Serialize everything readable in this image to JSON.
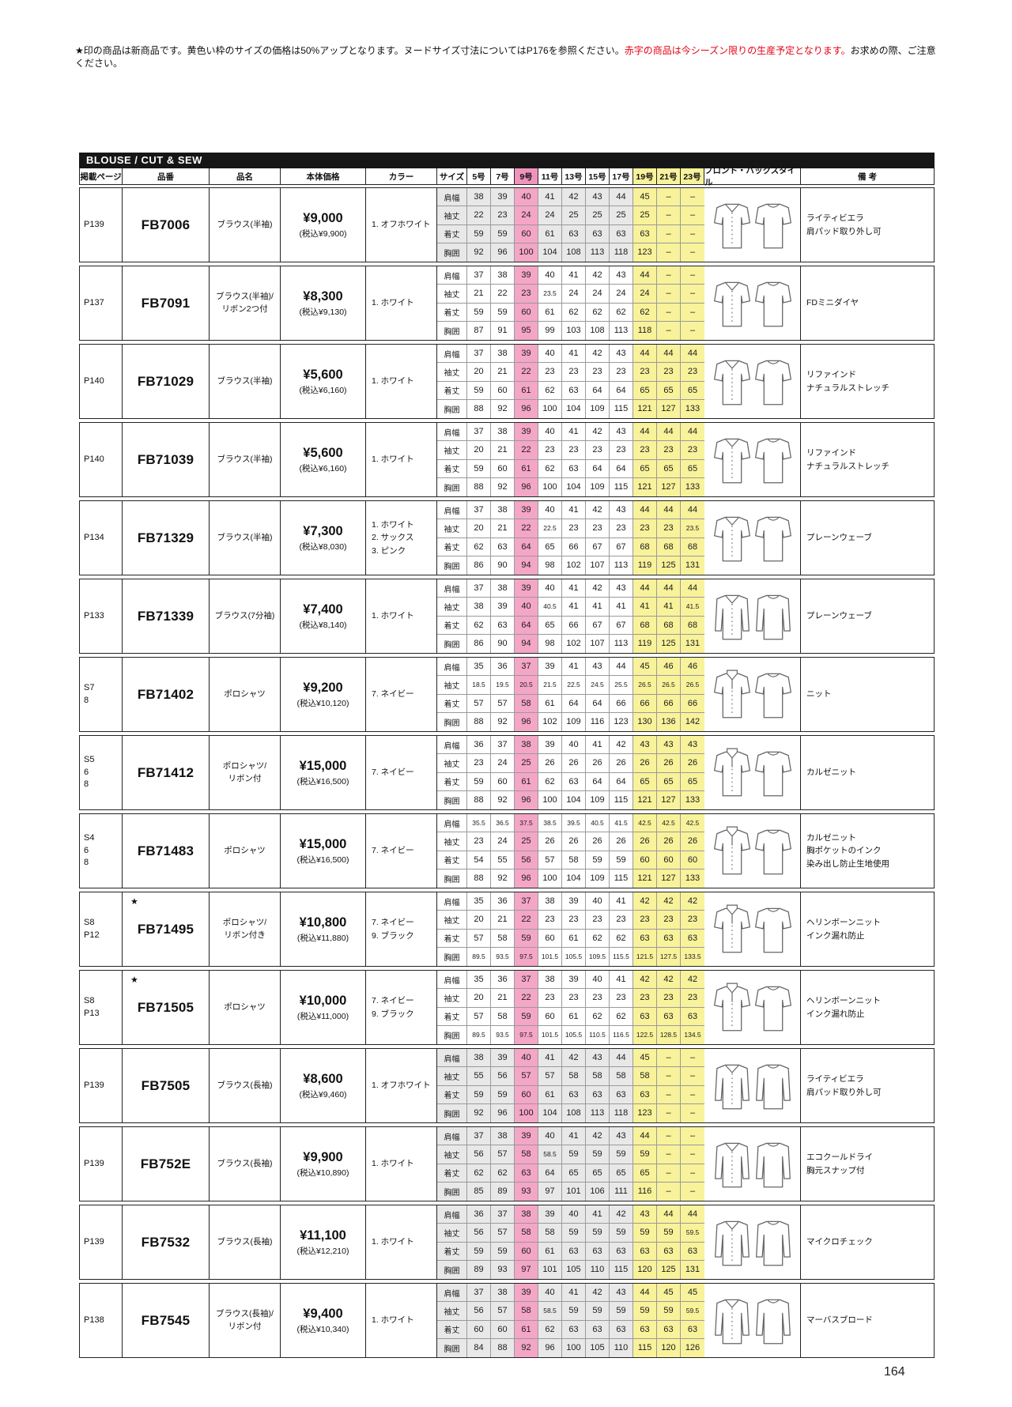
{
  "page": {
    "number": "164",
    "notice": {
      "black_prefix": "★印の商品は新商品です。黄色い枠のサイズの価格は50%アップとなります。ヌードサイズ寸法についてはP176を参照ください。",
      "red": "赤字の商品は今シーズン限りの生産予定となります。",
      "black_suffix": "お求めの際、ご注意ください。"
    }
  },
  "table": {
    "section_title": "BLOUSE / CUT & SEW",
    "columns": [
      "掲載ページ",
      "品番",
      "品名",
      "本体価格",
      "カラー",
      "サイズ",
      "5号",
      "7号",
      "9号",
      "11号",
      "13号",
      "15号",
      "17号",
      "19号",
      "21号",
      "23号",
      "フロント・バックスタイル",
      "備 考"
    ],
    "measure_labels": [
      "肩幅",
      "袖丈",
      "着丈",
      "胸囲"
    ]
  },
  "products": [
    {
      "page": "P139",
      "star": "",
      "code": "FB7006",
      "name": "ブラウス(半袖)",
      "price": "¥9,000",
      "tax": "(税込¥9,900)",
      "colors": "1. オフホワイト",
      "remarks": "ライティビエラ\n肩パッド取り外し可",
      "shaded": true,
      "garment": "short",
      "measurements": [
        [
          "38",
          "39",
          "40",
          "41",
          "42",
          "43",
          "44",
          "45",
          "–",
          "–"
        ],
        [
          "22",
          "23",
          "24",
          "24",
          "25",
          "25",
          "25",
          "25",
          "–",
          "–"
        ],
        [
          "59",
          "59",
          "60",
          "61",
          "63",
          "63",
          "63",
          "63",
          "–",
          "–"
        ],
        [
          "92",
          "96",
          "100",
          "104",
          "108",
          "113",
          "118",
          "123",
          "–",
          "–"
        ]
      ]
    },
    {
      "page": "P137",
      "star": "",
      "code": "FB7091",
      "name": "ブラウス(半袖)/\nリボン2つ付",
      "price": "¥8,300",
      "tax": "(税込¥9,130)",
      "colors": "1. ホワイト",
      "remarks": "FDミニダイヤ",
      "shaded": false,
      "garment": "short",
      "measurements": [
        [
          "37",
          "38",
          "39",
          "40",
          "41",
          "42",
          "43",
          "44",
          "–",
          "–"
        ],
        [
          "21",
          "22",
          "23",
          "23.5",
          "24",
          "24",
          "24",
          "24",
          "–",
          "–"
        ],
        [
          "59",
          "59",
          "60",
          "61",
          "62",
          "62",
          "62",
          "62",
          "–",
          "–"
        ],
        [
          "87",
          "91",
          "95",
          "99",
          "103",
          "108",
          "113",
          "118",
          "–",
          "–"
        ]
      ]
    },
    {
      "page": "P140",
      "star": "",
      "code": "FB71029",
      "name": "ブラウス(半袖)",
      "price": "¥5,600",
      "tax": "(税込¥6,160)",
      "colors": "1. ホワイト",
      "remarks": "リファインド\nナチュラルストレッチ",
      "shaded": false,
      "garment": "short",
      "measurements": [
        [
          "37",
          "38",
          "39",
          "40",
          "41",
          "42",
          "43",
          "44",
          "44",
          "44"
        ],
        [
          "20",
          "21",
          "22",
          "23",
          "23",
          "23",
          "23",
          "23",
          "23",
          "23"
        ],
        [
          "59",
          "60",
          "61",
          "62",
          "63",
          "64",
          "64",
          "65",
          "65",
          "65"
        ],
        [
          "88",
          "92",
          "96",
          "100",
          "104",
          "109",
          "115",
          "121",
          "127",
          "133"
        ]
      ]
    },
    {
      "page": "P140",
      "star": "",
      "code": "FB71039",
      "name": "ブラウス(半袖)",
      "price": "¥5,600",
      "tax": "(税込¥6,160)",
      "colors": "1. ホワイト",
      "remarks": "リファインド\nナチュラルストレッチ",
      "shaded": false,
      "garment": "short",
      "measurements": [
        [
          "37",
          "38",
          "39",
          "40",
          "41",
          "42",
          "43",
          "44",
          "44",
          "44"
        ],
        [
          "20",
          "21",
          "22",
          "23",
          "23",
          "23",
          "23",
          "23",
          "23",
          "23"
        ],
        [
          "59",
          "60",
          "61",
          "62",
          "63",
          "64",
          "64",
          "65",
          "65",
          "65"
        ],
        [
          "88",
          "92",
          "96",
          "100",
          "104",
          "109",
          "115",
          "121",
          "127",
          "133"
        ]
      ]
    },
    {
      "page": "P134",
      "star": "",
      "code": "FB71329",
      "name": "ブラウス(半袖)",
      "price": "¥7,300",
      "tax": "(税込¥8,030)",
      "colors": "1. ホワイト\n2. サックス\n3. ピンク",
      "remarks": "プレーンウェーブ",
      "shaded": false,
      "garment": "short",
      "measurements": [
        [
          "37",
          "38",
          "39",
          "40",
          "41",
          "42",
          "43",
          "44",
          "44",
          "44"
        ],
        [
          "20",
          "21",
          "22",
          "22.5",
          "23",
          "23",
          "23",
          "23",
          "23",
          "23.5"
        ],
        [
          "62",
          "63",
          "64",
          "65",
          "66",
          "67",
          "67",
          "68",
          "68",
          "68"
        ],
        [
          "86",
          "90",
          "94",
          "98",
          "102",
          "107",
          "113",
          "119",
          "125",
          "131"
        ]
      ]
    },
    {
      "page": "P133",
      "star": "",
      "code": "FB71339",
      "name": "ブラウス(7分袖)",
      "price": "¥7,400",
      "tax": "(税込¥8,140)",
      "colors": "1. ホワイト",
      "remarks": "プレーンウェーブ",
      "shaded": false,
      "garment": "long",
      "measurements": [
        [
          "37",
          "38",
          "39",
          "40",
          "41",
          "42",
          "43",
          "44",
          "44",
          "44"
        ],
        [
          "38",
          "39",
          "40",
          "40.5",
          "41",
          "41",
          "41",
          "41",
          "41",
          "41.5"
        ],
        [
          "62",
          "63",
          "64",
          "65",
          "66",
          "67",
          "67",
          "68",
          "68",
          "68"
        ],
        [
          "86",
          "90",
          "94",
          "98",
          "102",
          "107",
          "113",
          "119",
          "125",
          "131"
        ]
      ]
    },
    {
      "page": "S7\n8",
      "star": "",
      "code": "FB71402",
      "name": "ポロシャツ",
      "price": "¥9,200",
      "tax": "(税込¥10,120)",
      "colors": "7. ネイビー",
      "remarks": "ニット",
      "shaded": false,
      "garment": "polo",
      "measurements": [
        [
          "35",
          "36",
          "37",
          "39",
          "41",
          "43",
          "44",
          "45",
          "46",
          "46"
        ],
        [
          "18.5",
          "19.5",
          "20.5",
          "21.5",
          "22.5",
          "24.5",
          "25.5",
          "26.5",
          "26.5",
          "26.5"
        ],
        [
          "57",
          "57",
          "58",
          "61",
          "64",
          "64",
          "66",
          "66",
          "66",
          "66"
        ],
        [
          "88",
          "92",
          "96",
          "102",
          "109",
          "116",
          "123",
          "130",
          "136",
          "142"
        ]
      ]
    },
    {
      "page": "S5\n6\n8",
      "star": "",
      "code": "FB71412",
      "name": "ポロシャツ/\nリボン付",
      "price": "¥15,000",
      "tax": "(税込¥16,500)",
      "colors": "7. ネイビー",
      "remarks": "カルゼニット",
      "shaded": false,
      "garment": "polo",
      "measurements": [
        [
          "36",
          "37",
          "38",
          "39",
          "40",
          "41",
          "42",
          "43",
          "43",
          "43"
        ],
        [
          "23",
          "24",
          "25",
          "26",
          "26",
          "26",
          "26",
          "26",
          "26",
          "26"
        ],
        [
          "59",
          "60",
          "61",
          "62",
          "63",
          "64",
          "64",
          "65",
          "65",
          "65"
        ],
        [
          "88",
          "92",
          "96",
          "100",
          "104",
          "109",
          "115",
          "121",
          "127",
          "133"
        ]
      ]
    },
    {
      "page": "S4\n6\n8",
      "star": "",
      "code": "FB71483",
      "name": "ポロシャツ",
      "price": "¥15,000",
      "tax": "(税込¥16,500)",
      "colors": "7. ネイビー",
      "remarks": "カルゼニット\n胸ポケットのインク\n染み出し防止生地使用",
      "shaded": false,
      "garment": "polo",
      "measurements": [
        [
          "35.5",
          "36.5",
          "37.5",
          "38.5",
          "39.5",
          "40.5",
          "41.5",
          "42.5",
          "42.5",
          "42.5"
        ],
        [
          "23",
          "24",
          "25",
          "26",
          "26",
          "26",
          "26",
          "26",
          "26",
          "26"
        ],
        [
          "54",
          "55",
          "56",
          "57",
          "58",
          "59",
          "59",
          "60",
          "60",
          "60"
        ],
        [
          "88",
          "92",
          "96",
          "100",
          "104",
          "109",
          "115",
          "121",
          "127",
          "133"
        ]
      ]
    },
    {
      "page": "S8\nP12",
      "star": "★",
      "code": "FB71495",
      "name": "ポロシャツ/\nリボン付き",
      "price": "¥10,800",
      "tax": "(税込¥11,880)",
      "colors": "7. ネイビー\n9. ブラック",
      "remarks": "ヘリンボーンニット\nインク漏れ防止",
      "shaded": false,
      "garment": "polo",
      "measurements": [
        [
          "35",
          "36",
          "37",
          "38",
          "39",
          "40",
          "41",
          "42",
          "42",
          "42"
        ],
        [
          "20",
          "21",
          "22",
          "23",
          "23",
          "23",
          "23",
          "23",
          "23",
          "23"
        ],
        [
          "57",
          "58",
          "59",
          "60",
          "61",
          "62",
          "62",
          "63",
          "63",
          "63"
        ],
        [
          "89.5",
          "93.5",
          "97.5",
          "101.5",
          "105.5",
          "109.5",
          "115.5",
          "121.5",
          "127.5",
          "133.5"
        ]
      ]
    },
    {
      "page": "S8\nP13",
      "star": "★",
      "code": "FB71505",
      "name": "ポロシャツ",
      "price": "¥10,000",
      "tax": "(税込¥11,000)",
      "colors": "7. ネイビー\n9. ブラック",
      "remarks": "ヘリンボーンニット\nインク漏れ防止",
      "shaded": false,
      "garment": "polo",
      "measurements": [
        [
          "35",
          "36",
          "37",
          "38",
          "39",
          "40",
          "41",
          "42",
          "42",
          "42"
        ],
        [
          "20",
          "21",
          "22",
          "23",
          "23",
          "23",
          "23",
          "23",
          "23",
          "23"
        ],
        [
          "57",
          "58",
          "59",
          "60",
          "61",
          "62",
          "62",
          "63",
          "63",
          "63"
        ],
        [
          "89.5",
          "93.5",
          "97.5",
          "101.5",
          "105.5",
          "110.5",
          "116.5",
          "122.5",
          "128.5",
          "134.5"
        ]
      ]
    },
    {
      "page": "P139",
      "star": "",
      "code": "FB7505",
      "name": "ブラウス(長袖)",
      "price": "¥8,600",
      "tax": "(税込¥9,460)",
      "colors": "1. オフホワイト",
      "remarks": "ライティビエラ\n肩パッド取り外し可",
      "shaded": true,
      "garment": "long",
      "measurements": [
        [
          "38",
          "39",
          "40",
          "41",
          "42",
          "43",
          "44",
          "45",
          "–",
          "–"
        ],
        [
          "55",
          "56",
          "57",
          "57",
          "58",
          "58",
          "58",
          "58",
          "–",
          "–"
        ],
        [
          "59",
          "59",
          "60",
          "61",
          "63",
          "63",
          "63",
          "63",
          "–",
          "–"
        ],
        [
          "92",
          "96",
          "100",
          "104",
          "108",
          "113",
          "118",
          "123",
          "–",
          "–"
        ]
      ]
    },
    {
      "page": "P139",
      "star": "",
      "code": "FB752E",
      "name": "ブラウス(長袖)",
      "price": "¥9,900",
      "tax": "(税込¥10,890)",
      "colors": "1. ホワイト",
      "remarks": "エコクールドライ\n胸元スナップ付",
      "shaded": true,
      "garment": "long",
      "measurements": [
        [
          "37",
          "38",
          "39",
          "40",
          "41",
          "42",
          "43",
          "44",
          "–",
          "–"
        ],
        [
          "56",
          "57",
          "58",
          "58.5",
          "59",
          "59",
          "59",
          "59",
          "–",
          "–"
        ],
        [
          "62",
          "62",
          "63",
          "64",
          "65",
          "65",
          "65",
          "65",
          "–",
          "–"
        ],
        [
          "85",
          "89",
          "93",
          "97",
          "101",
          "106",
          "111",
          "116",
          "–",
          "–"
        ]
      ]
    },
    {
      "page": "P139",
      "star": "",
      "code": "FB7532",
      "name": "ブラウス(長袖)",
      "price": "¥11,100",
      "tax": "(税込¥12,210)",
      "colors": "1. ホワイト",
      "remarks": "マイクロチェック",
      "shaded": true,
      "garment": "long",
      "measurements": [
        [
          "36",
          "37",
          "38",
          "39",
          "40",
          "41",
          "42",
          "43",
          "44",
          "44"
        ],
        [
          "56",
          "57",
          "58",
          "58",
          "59",
          "59",
          "59",
          "59",
          "59",
          "59.5"
        ],
        [
          "59",
          "59",
          "60",
          "61",
          "63",
          "63",
          "63",
          "63",
          "63",
          "63"
        ],
        [
          "89",
          "93",
          "97",
          "101",
          "105",
          "110",
          "115",
          "120",
          "125",
          "131"
        ]
      ]
    },
    {
      "page": "P138",
      "star": "",
      "code": "FB7545",
      "name": "ブラウス(長袖)/\nリボン付",
      "price": "¥9,400",
      "tax": "(税込¥10,340)",
      "colors": "1. ホワイト",
      "remarks": "マーバスブロード",
      "shaded": true,
      "garment": "long",
      "measurements": [
        [
          "37",
          "38",
          "39",
          "40",
          "41",
          "42",
          "43",
          "44",
          "45",
          "45"
        ],
        [
          "56",
          "57",
          "58",
          "58.5",
          "59",
          "59",
          "59",
          "59",
          "59",
          "59.5"
        ],
        [
          "60",
          "60",
          "61",
          "62",
          "63",
          "63",
          "63",
          "63",
          "63",
          "63"
        ],
        [
          "84",
          "88",
          "92",
          "96",
          "100",
          "105",
          "110",
          "115",
          "120",
          "126"
        ]
      ]
    }
  ]
}
